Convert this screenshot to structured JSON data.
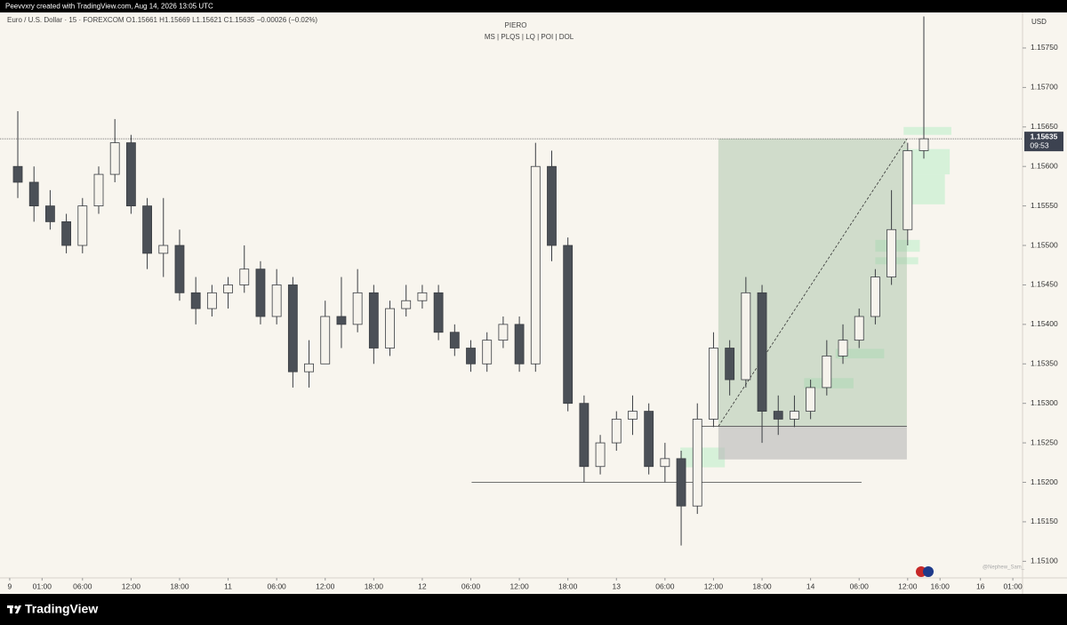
{
  "header": {
    "credit": "Peevvxry created with TradingView.com, Aug 14, 2026 13:05 UTC"
  },
  "chart_data": {
    "type": "candlestick",
    "symbol_line": "Euro / U.S. Dollar · 15 · FOREXCOM   O1.15661  H1.15669  L1.15621  C1.15635  −0.00026 (−0.02%)",
    "title": "PIERO",
    "subtitle": "MS  |  PLQS  |  LQ  |  POI  |  DOL",
    "currency": "USD",
    "watermark": "@Nephew_Sam_",
    "candles": {
      "x": [
        0,
        2,
        4,
        6,
        8,
        10,
        12,
        14,
        16,
        18,
        20,
        22,
        24,
        26,
        28,
        30,
        32,
        34,
        36,
        38,
        40,
        42,
        44,
        46,
        48,
        50,
        52,
        54,
        56,
        58,
        60,
        62,
        64,
        66,
        68,
        70,
        72,
        74,
        76,
        78,
        80,
        82,
        84,
        86,
        88,
        90,
        92,
        94,
        96,
        98,
        100,
        102,
        104,
        106,
        108,
        110,
        112
      ],
      "open": [
        1.156,
        1.1558,
        1.1555,
        1.1553,
        1.155,
        1.1555,
        1.1559,
        1.1563,
        1.1555,
        1.1549,
        1.155,
        1.1544,
        1.1542,
        1.1544,
        1.1545,
        1.1547,
        1.1541,
        1.1545,
        1.1534,
        1.1535,
        1.1541,
        1.154,
        1.1544,
        1.1537,
        1.1542,
        1.1543,
        1.1544,
        1.1539,
        1.1537,
        1.1535,
        1.1538,
        1.154,
        1.1535,
        1.156,
        1.155,
        1.153,
        1.1522,
        1.1525,
        1.1528,
        1.1529,
        1.1522,
        1.1523,
        1.1517,
        1.1528,
        1.1537,
        1.1533,
        1.1544,
        1.1529,
        1.1528,
        1.1529,
        1.1532,
        1.1536,
        1.1538,
        1.1541,
        1.1546,
        1.1552,
        1.1562
      ],
      "high": [
        1.1567,
        1.156,
        1.1557,
        1.1554,
        1.1556,
        1.156,
        1.1566,
        1.1564,
        1.1556,
        1.1556,
        1.1552,
        1.1546,
        1.1545,
        1.1546,
        1.155,
        1.1548,
        1.1547,
        1.1546,
        1.1538,
        1.1543,
        1.1546,
        1.1547,
        1.1545,
        1.1543,
        1.1545,
        1.1545,
        1.1545,
        1.154,
        1.1538,
        1.1539,
        1.1541,
        1.1541,
        1.1563,
        1.1562,
        1.1551,
        1.1531,
        1.1526,
        1.1529,
        1.1531,
        1.153,
        1.1525,
        1.1524,
        1.153,
        1.1539,
        1.1538,
        1.1546,
        1.1545,
        1.1531,
        1.1531,
        1.1533,
        1.1538,
        1.154,
        1.1542,
        1.1547,
        1.1557,
        1.1563,
        1.1579
      ],
      "low": [
        1.1556,
        1.1553,
        1.1552,
        1.1549,
        1.1549,
        1.1554,
        1.1558,
        1.1554,
        1.1547,
        1.1546,
        1.1543,
        1.154,
        1.1541,
        1.1542,
        1.1544,
        1.154,
        1.154,
        1.1532,
        1.1532,
        1.1535,
        1.1537,
        1.1539,
        1.1535,
        1.1536,
        1.1541,
        1.1542,
        1.1538,
        1.1536,
        1.1534,
        1.1534,
        1.1537,
        1.1534,
        1.1534,
        1.1548,
        1.1529,
        1.152,
        1.1521,
        1.1524,
        1.1526,
        1.1521,
        1.152,
        1.1512,
        1.1516,
        1.1527,
        1.1531,
        1.1532,
        1.1525,
        1.1526,
        1.1527,
        1.1528,
        1.1531,
        1.1535,
        1.1537,
        1.154,
        1.1545,
        1.155,
        1.1561
      ],
      "close": [
        1.1558,
        1.1555,
        1.1553,
        1.155,
        1.1555,
        1.1559,
        1.1563,
        1.1555,
        1.1549,
        1.155,
        1.1544,
        1.1542,
        1.1544,
        1.1545,
        1.1547,
        1.1541,
        1.1545,
        1.1534,
        1.1535,
        1.1541,
        1.154,
        1.1544,
        1.1537,
        1.1542,
        1.1543,
        1.1544,
        1.1539,
        1.1537,
        1.1535,
        1.1538,
        1.154,
        1.1535,
        1.156,
        1.155,
        1.153,
        1.1522,
        1.1525,
        1.1528,
        1.1529,
        1.1522,
        1.1523,
        1.1517,
        1.1528,
        1.1537,
        1.1533,
        1.1544,
        1.1529,
        1.1528,
        1.1529,
        1.1532,
        1.1536,
        1.1538,
        1.1541,
        1.1546,
        1.1552,
        1.1562,
        1.15635
      ]
    },
    "candle_hours": 2,
    "up_color": "#f6f3ec",
    "down_color": "#4b5057",
    "outline_color": "#3a3d42",
    "last_price": 1.15635,
    "countdown": "09:53",
    "position": {
      "entry": 1.15271,
      "target": 1.15635,
      "stop": 1.15229,
      "x": [
        87.6,
        110.9
      ],
      "entry_line_start": 84.5
    },
    "level": {
      "price": 1.152,
      "x": [
        57.1,
        105.3
      ]
    },
    "zones": [
      {
        "x": [
          110.5,
          116.4
        ],
        "y": [
          1.1565,
          1.1564
        ]
      },
      {
        "x": [
          110.5,
          116.2
        ],
        "y": [
          1.15622,
          1.1559
        ]
      },
      {
        "x": [
          110.5,
          115.6
        ],
        "y": [
          1.1559,
          1.15552
        ]
      },
      {
        "x": [
          107.0,
          112.5
        ],
        "y": [
          1.15507,
          1.15492
        ]
      },
      {
        "x": [
          107.0,
          112.3
        ],
        "y": [
          1.15485,
          1.15476
        ]
      },
      {
        "x": [
          102.1,
          108.1
        ],
        "y": [
          1.15369,
          1.15357
        ]
      },
      {
        "x": [
          98.2,
          104.3
        ],
        "y": [
          1.15332,
          1.15319
        ]
      },
      {
        "x": [
          82.9,
          88.4
        ],
        "y": [
          1.15244,
          1.15219
        ]
      }
    ],
    "xlim": [
      -1.2,
      125.2
    ],
    "ylim": [
      1.15079,
      1.15795
    ],
    "xticks": [
      {
        "value": 0,
        "label": "9"
      },
      {
        "value": 4,
        "label": "01:00"
      },
      {
        "value": 9,
        "label": "06:00"
      },
      {
        "value": 15,
        "label": "12:00"
      },
      {
        "value": 21,
        "label": "18:00"
      },
      {
        "value": 27,
        "label": "11"
      },
      {
        "value": 33,
        "label": "06:00"
      },
      {
        "value": 39,
        "label": "12:00"
      },
      {
        "value": 45,
        "label": "18:00"
      },
      {
        "value": 51,
        "label": "12"
      },
      {
        "value": 57,
        "label": "06:00"
      },
      {
        "value": 63,
        "label": "12:00"
      },
      {
        "value": 69,
        "label": "18:00"
      },
      {
        "value": 75,
        "label": "13"
      },
      {
        "value": 81,
        "label": "06:00"
      },
      {
        "value": 87,
        "label": "12:00"
      },
      {
        "value": 93,
        "label": "18:00"
      },
      {
        "value": 99,
        "label": "14"
      },
      {
        "value": 105,
        "label": "06:00"
      },
      {
        "value": 111,
        "label": "12:00"
      },
      {
        "value": 115,
        "label": "16:00"
      },
      {
        "value": 120,
        "label": "16"
      },
      {
        "value": 124,
        "label": "01:00"
      }
    ],
    "yticks": [
      {
        "value": 1.1575,
        "label": "1.15750"
      },
      {
        "value": 1.157,
        "label": "1.15700"
      },
      {
        "value": 1.1565,
        "label": "1.15650"
      },
      {
        "value": 1.156,
        "label": "1.15600"
      },
      {
        "value": 1.1555,
        "label": "1.15550"
      },
      {
        "value": 1.155,
        "label": "1.15500"
      },
      {
        "value": 1.1545,
        "label": "1.15450"
      },
      {
        "value": 1.154,
        "label": "1.15400"
      },
      {
        "value": 1.1535,
        "label": "1.15350"
      },
      {
        "value": 1.153,
        "label": "1.15300"
      },
      {
        "value": 1.1525,
        "label": "1.15250"
      },
      {
        "value": 1.152,
        "label": "1.15200"
      },
      {
        "value": 1.1515,
        "label": "1.15150"
      },
      {
        "value": 1.151,
        "label": "1.15100"
      }
    ],
    "grid": false
  },
  "footer": {
    "brand": "TradingView"
  }
}
